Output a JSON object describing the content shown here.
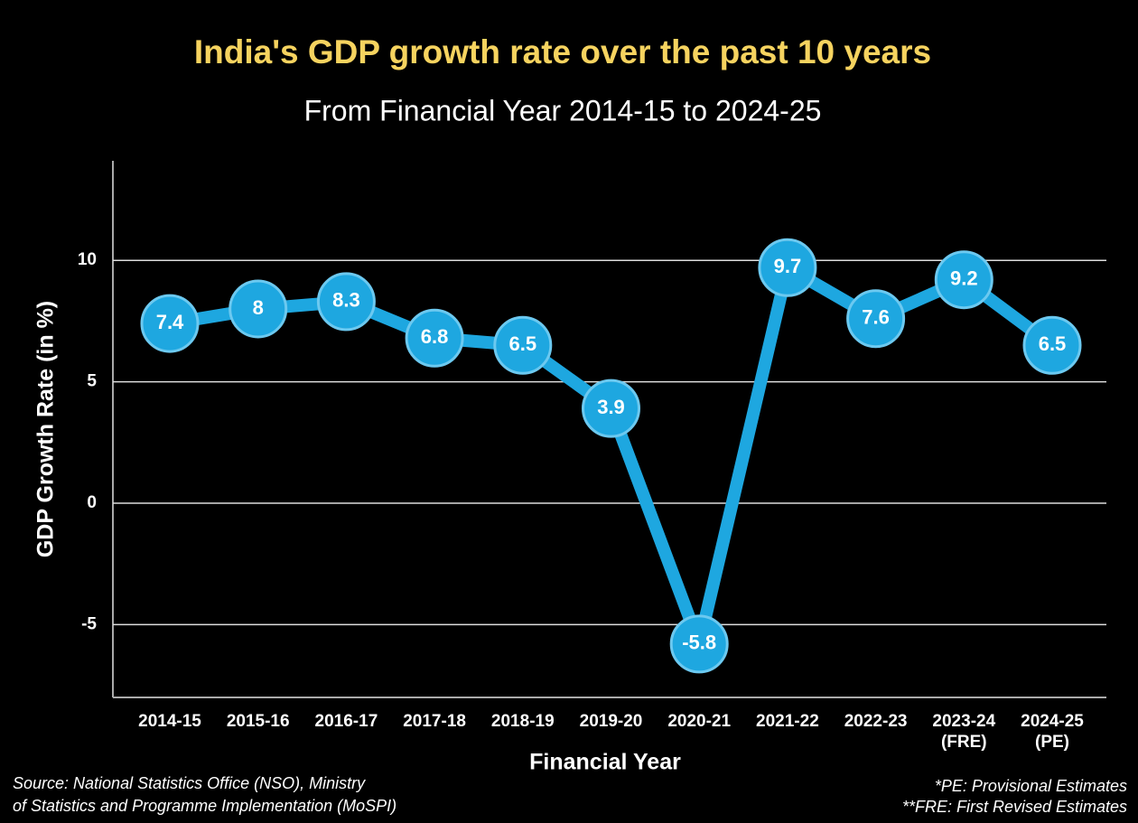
{
  "chart_data": {
    "type": "line",
    "title": "India's GDP growth rate over the past 10 years",
    "subtitle": "From Financial Year 2014-15 to 2024-25",
    "x_label": "Financial Year",
    "y_label": "GDP Growth Rate (in %)",
    "categories": [
      "2014-15",
      "2015-16",
      "2016-17",
      "2017-18",
      "2018-19",
      "2019-20",
      "2020-21",
      "2021-22",
      "2022-23",
      "2023-24 (FRE)",
      "2024-25 (PE)"
    ],
    "values": [
      7.4,
      8,
      8.3,
      6.8,
      6.5,
      3.9,
      -5.8,
      9.7,
      7.6,
      9.2,
      6.5
    ],
    "color": "#1ea7e0",
    "ylim": [
      -8,
      14.1
    ],
    "yticks": [
      -5,
      0,
      5,
      10
    ],
    "grid": true,
    "source": [
      "Source: National Statistics Office (NSO), Ministry",
      "of Statistics and Programme Implementation (MoSPI)"
    ],
    "notes": [
      "*PE: Provisional Estimates",
      "**FRE: First Revised Estimates"
    ]
  }
}
